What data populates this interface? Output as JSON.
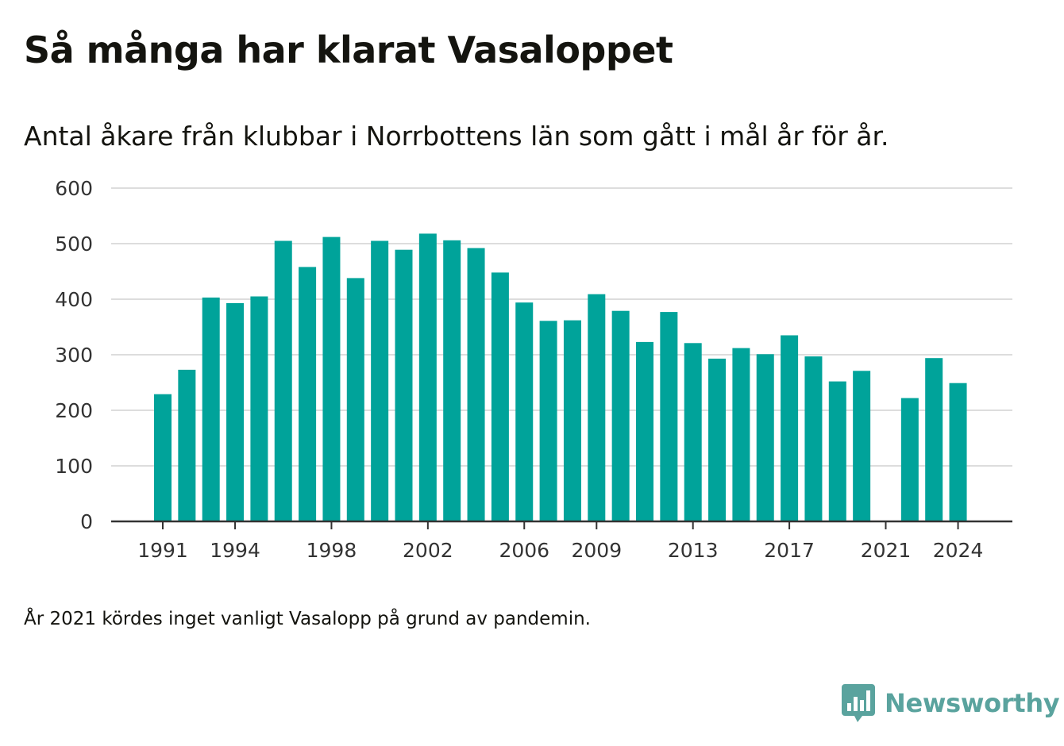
{
  "title": "Så många har klarat Vasaloppet",
  "subtitle": "Antal åkare från klubbar i Norrbottens län som gått i mål år för år.",
  "footnote": "År 2021 kördes inget vanligt Vasalopp på grund av pandemin.",
  "brand": {
    "name": "Newsworthy",
    "icon": "newsworthy-logo-icon",
    "color": "#5aa39e"
  },
  "colors": {
    "bar": "#00a39a",
    "grid": "#dddddd",
    "axis": "#333333",
    "text": "#14140f"
  },
  "chart_data": {
    "type": "bar",
    "x": [
      1991,
      1992,
      1993,
      1994,
      1995,
      1996,
      1997,
      1998,
      1999,
      2000,
      2001,
      2002,
      2003,
      2004,
      2005,
      2006,
      2007,
      2008,
      2009,
      2010,
      2011,
      2012,
      2013,
      2014,
      2015,
      2016,
      2017,
      2018,
      2019,
      2020,
      2021,
      2022,
      2023,
      2024
    ],
    "values": [
      229,
      273,
      403,
      393,
      405,
      505,
      458,
      512,
      438,
      505,
      489,
      518,
      506,
      492,
      448,
      394,
      361,
      362,
      409,
      379,
      323,
      377,
      321,
      293,
      312,
      301,
      335,
      297,
      252,
      271,
      null,
      222,
      294,
      249
    ],
    "x_tick_labels": [
      "1991",
      "1994",
      "1998",
      "2002",
      "2006",
      "2009",
      "2013",
      "2017",
      "2021",
      "2024"
    ],
    "y_ticks": [
      0,
      100,
      200,
      300,
      400,
      500,
      600
    ],
    "ylim": [
      0,
      600
    ],
    "grid": true,
    "legend": "none"
  }
}
